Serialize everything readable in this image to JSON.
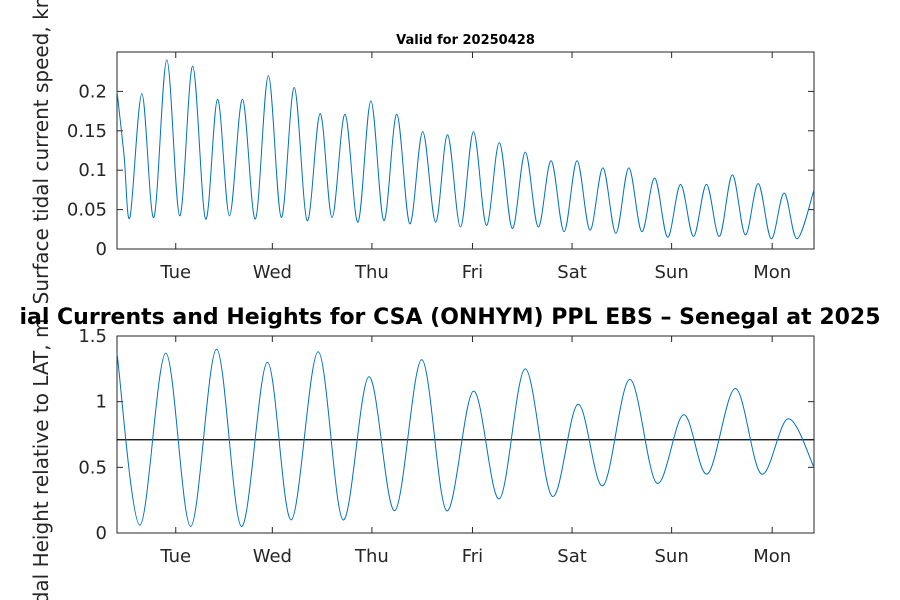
{
  "figure": {
    "suptitle": "ial Currents and Heights for CSA (ONHYM) PPL EBS  – Senegal at 2025"
  },
  "chart_data": [
    {
      "type": "line",
      "title": "Valid for 20250428",
      "ylabel": "Surface tidal current speed, kn",
      "xlabel": "",
      "x_tick_labels": [
        "Tue",
        "Wed",
        "Thu",
        "Fri",
        "Sat",
        "Sun",
        "Mon"
      ],
      "y_tick_labels": [
        "0",
        "0.05",
        "0.1",
        "0.15",
        "0.2"
      ],
      "xlim": [
        0,
        7
      ],
      "ylim": [
        0,
        0.25
      ],
      "x_unit": "days (tick 'Tue' at x=0.59)",
      "series": [
        {
          "color": "#0072bd",
          "points": [
            [
              0.0,
              0.2
            ],
            [
              0.07,
              0.12
            ],
            [
              0.13,
              0.04
            ],
            [
              0.25,
              0.197
            ],
            [
              0.37,
              0.04
            ],
            [
              0.5,
              0.24
            ],
            [
              0.63,
              0.042
            ],
            [
              0.76,
              0.232
            ],
            [
              0.89,
              0.038
            ],
            [
              1.01,
              0.19
            ],
            [
              1.13,
              0.042
            ],
            [
              1.26,
              0.19
            ],
            [
              1.39,
              0.038
            ],
            [
              1.52,
              0.22
            ],
            [
              1.65,
              0.04
            ],
            [
              1.78,
              0.205
            ],
            [
              1.91,
              0.036
            ],
            [
              2.04,
              0.172
            ],
            [
              2.16,
              0.04
            ],
            [
              2.29,
              0.171
            ],
            [
              2.42,
              0.034
            ],
            [
              2.55,
              0.188
            ],
            [
              2.68,
              0.036
            ],
            [
              2.81,
              0.171
            ],
            [
              2.94,
              0.032
            ],
            [
              3.07,
              0.149
            ],
            [
              3.2,
              0.034
            ],
            [
              3.32,
              0.145
            ],
            [
              3.45,
              0.028
            ],
            [
              3.58,
              0.149
            ],
            [
              3.71,
              0.03
            ],
            [
              3.84,
              0.135
            ],
            [
              3.97,
              0.026
            ],
            [
              4.1,
              0.123
            ],
            [
              4.23,
              0.028
            ],
            [
              4.36,
              0.112
            ],
            [
              4.49,
              0.022
            ],
            [
              4.62,
              0.112
            ],
            [
              4.75,
              0.024
            ],
            [
              4.88,
              0.103
            ],
            [
              5.01,
              0.02
            ],
            [
              5.14,
              0.103
            ],
            [
              5.27,
              0.022
            ],
            [
              5.4,
              0.09
            ],
            [
              5.53,
              0.015
            ],
            [
              5.66,
              0.082
            ],
            [
              5.79,
              0.016
            ],
            [
              5.92,
              0.082
            ],
            [
              6.05,
              0.016
            ],
            [
              6.18,
              0.094
            ],
            [
              6.31,
              0.018
            ],
            [
              6.44,
              0.083
            ],
            [
              6.57,
              0.013
            ],
            [
              6.7,
              0.071
            ],
            [
              6.83,
              0.013
            ],
            [
              7.0,
              0.075
            ]
          ]
        }
      ]
    },
    {
      "type": "line",
      "title": "",
      "ylabel": "Tidal Height relative to LAT, m",
      "xlabel": "",
      "x_tick_labels": [
        "Tue",
        "Wed",
        "Thu",
        "Fri",
        "Sat",
        "Sun",
        "Mon"
      ],
      "y_tick_labels": [
        "0",
        "0.5",
        "1",
        "1.5"
      ],
      "xlim": [
        0,
        7
      ],
      "ylim": [
        0,
        1.5
      ],
      "reference_line": 0.71,
      "series": [
        {
          "color": "#0072bd",
          "points": [
            [
              0.0,
              1.37
            ],
            [
              0.23,
              0.06
            ],
            [
              0.49,
              1.37
            ],
            [
              0.74,
              0.05
            ],
            [
              1.0,
              1.4
            ],
            [
              1.25,
              0.05
            ],
            [
              1.51,
              1.3
            ],
            [
              1.75,
              0.1
            ],
            [
              2.02,
              1.38
            ],
            [
              2.27,
              0.1
            ],
            [
              2.53,
              1.19
            ],
            [
              2.79,
              0.17
            ],
            [
              3.06,
              1.32
            ],
            [
              3.31,
              0.17
            ],
            [
              3.58,
              1.08
            ],
            [
              3.84,
              0.26
            ],
            [
              4.1,
              1.25
            ],
            [
              4.37,
              0.28
            ],
            [
              4.63,
              0.98
            ],
            [
              4.88,
              0.36
            ],
            [
              5.15,
              1.17
            ],
            [
              5.42,
              0.38
            ],
            [
              5.69,
              0.9
            ],
            [
              5.93,
              0.45
            ],
            [
              6.21,
              1.1
            ],
            [
              6.47,
              0.45
            ],
            [
              6.74,
              0.87
            ],
            [
              7.0,
              0.5
            ]
          ]
        }
      ]
    }
  ]
}
